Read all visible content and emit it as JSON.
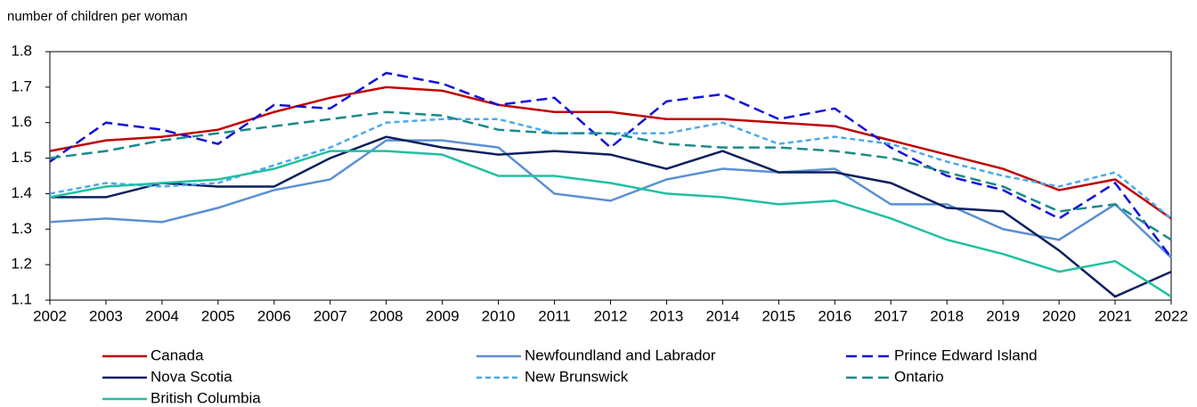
{
  "chart_data": {
    "type": "line",
    "y_axis_label": "number of children per woman",
    "x": [
      2002,
      2003,
      2004,
      2005,
      2006,
      2007,
      2008,
      2009,
      2010,
      2011,
      2012,
      2013,
      2014,
      2015,
      2016,
      2017,
      2018,
      2019,
      2020,
      2021,
      2022
    ],
    "xlim": [
      2002,
      2022
    ],
    "xticks": [
      2002,
      2003,
      2004,
      2005,
      2006,
      2007,
      2008,
      2009,
      2010,
      2011,
      2012,
      2013,
      2014,
      2015,
      2016,
      2017,
      2018,
      2019,
      2020,
      2021,
      2022
    ],
    "ylim": [
      1.1,
      1.8
    ],
    "yticks": [
      1.1,
      1.2,
      1.3,
      1.4,
      1.5,
      1.6,
      1.7,
      1.8
    ],
    "grid": false,
    "legend": "bottom",
    "series": [
      {
        "name": "Canada",
        "color": "#c00000",
        "style": "solid",
        "values": [
          1.52,
          1.55,
          1.56,
          1.58,
          1.63,
          1.67,
          1.7,
          1.69,
          1.65,
          1.63,
          1.63,
          1.61,
          1.61,
          1.6,
          1.59,
          1.55,
          1.51,
          1.47,
          1.41,
          1.44,
          1.33
        ]
      },
      {
        "name": "Newfoundland and Labrador",
        "color": "#5b8fd4",
        "style": "solid",
        "values": [
          1.32,
          1.33,
          1.32,
          1.36,
          1.41,
          1.44,
          1.55,
          1.55,
          1.53,
          1.4,
          1.38,
          1.44,
          1.47,
          1.46,
          1.47,
          1.37,
          1.37,
          1.3,
          1.27,
          1.37,
          1.22
        ]
      },
      {
        "name": "Prince Edward Island",
        "color": "#1010e0",
        "style": "dashed",
        "values": [
          1.49,
          1.6,
          1.58,
          1.54,
          1.65,
          1.64,
          1.74,
          1.71,
          1.65,
          1.67,
          1.53,
          1.66,
          1.68,
          1.61,
          1.64,
          1.53,
          1.45,
          1.41,
          1.33,
          1.43,
          1.22
        ]
      },
      {
        "name": "Nova Scotia",
        "color": "#0b1f5e",
        "style": "solid",
        "values": [
          1.39,
          1.39,
          1.43,
          1.42,
          1.42,
          1.5,
          1.56,
          1.53,
          1.51,
          1.52,
          1.51,
          1.47,
          1.52,
          1.46,
          1.46,
          1.43,
          1.36,
          1.35,
          1.24,
          1.11,
          1.18
        ]
      },
      {
        "name": "New Brunswick",
        "color": "#4aa8f0",
        "style": "short-dashed",
        "values": [
          1.4,
          1.43,
          1.42,
          1.43,
          1.48,
          1.53,
          1.6,
          1.61,
          1.61,
          1.57,
          1.57,
          1.57,
          1.6,
          1.54,
          1.56,
          1.54,
          1.49,
          1.45,
          1.42,
          1.46,
          1.33
        ]
      },
      {
        "name": "Ontario",
        "color": "#1a8a8a",
        "style": "dashed",
        "values": [
          1.5,
          1.52,
          1.55,
          1.57,
          1.59,
          1.61,
          1.63,
          1.62,
          1.58,
          1.57,
          1.57,
          1.54,
          1.53,
          1.53,
          1.52,
          1.5,
          1.46,
          1.42,
          1.35,
          1.37,
          1.27
        ]
      },
      {
        "name": "British Columbia",
        "color": "#20c0a0",
        "style": "solid",
        "values": [
          1.39,
          1.42,
          1.43,
          1.44,
          1.47,
          1.52,
          1.52,
          1.51,
          1.45,
          1.45,
          1.43,
          1.4,
          1.39,
          1.37,
          1.38,
          1.33,
          1.27,
          1.23,
          1.18,
          1.21,
          1.11
        ]
      }
    ]
  }
}
